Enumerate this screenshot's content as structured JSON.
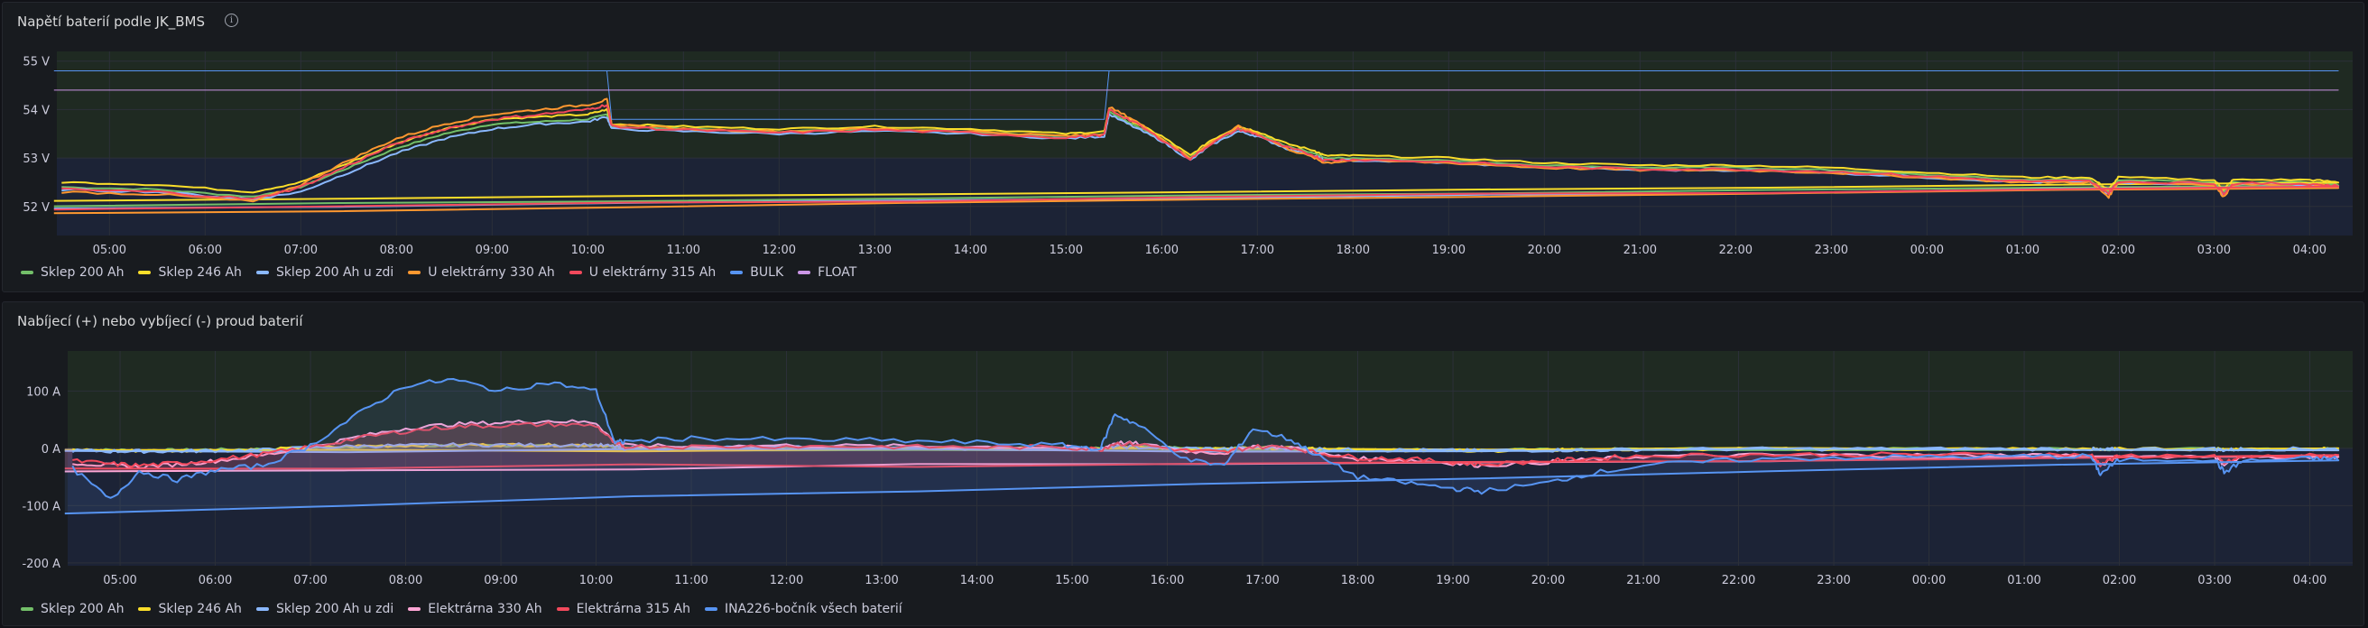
{
  "panels": [
    {
      "title": "Napětí baterií podle JK_BMS"
    },
    {
      "title": "Nabíjecí (+) nebo vybíjecí (-) proud baterií"
    }
  ],
  "colors": {
    "green": "#73bf69",
    "yellow": "#fade2a",
    "lightblue": "#8ab8ff",
    "orange": "#ff9830",
    "red": "#f2495c",
    "blue": "#5794f2",
    "purple": "#ca95e5",
    "pink": "#ffa6d5",
    "zone_high": "#1f2a22",
    "zone_low": "#1c2336"
  },
  "chart_data": [
    {
      "type": "line",
      "title": "Napětí baterií podle JK_BMS",
      "xlabel": "",
      "ylabel": "",
      "x_ticks": [
        "05:00",
        "06:00",
        "07:00",
        "08:00",
        "09:00",
        "10:00",
        "11:00",
        "12:00",
        "13:00",
        "14:00",
        "15:00",
        "16:00",
        "17:00",
        "18:00",
        "19:00",
        "20:00",
        "21:00",
        "22:00",
        "23:00",
        "00:00",
        "01:00",
        "02:00",
        "03:00",
        "04:00"
      ],
      "y_ticks": [
        "52 V",
        "53 V",
        "54 V",
        "55 V"
      ],
      "ylim": [
        51.4,
        55.2
      ],
      "grid": true,
      "legend_position": "bottom-left",
      "x_hours": [
        4.5,
        5.5,
        6.5,
        7,
        7.5,
        8,
        8.5,
        9,
        9.5,
        10,
        10.2,
        10.25,
        11,
        12,
        13,
        14,
        15,
        15.4,
        15.45,
        15.7,
        16,
        16.3,
        16.5,
        16.8,
        17,
        17.3,
        17.6,
        17.7,
        18,
        19,
        20,
        21,
        22,
        23,
        0,
        1,
        1.7,
        1.9,
        2,
        3,
        3.1,
        3.2,
        4,
        4.3,
        4.42
      ],
      "series": [
        {
          "name": "Sklep 200 Ah",
          "color_key": "green",
          "values": [
            52.4,
            52.35,
            52.2,
            52.4,
            52.8,
            53.2,
            53.5,
            53.7,
            53.75,
            53.8,
            53.9,
            53.65,
            53.6,
            53.55,
            53.6,
            53.55,
            53.45,
            53.5,
            53.95,
            53.7,
            53.4,
            53.0,
            53.3,
            53.6,
            53.5,
            53.25,
            53.1,
            53.0,
            53.0,
            52.95,
            52.85,
            52.8,
            52.8,
            52.75,
            52.65,
            52.55,
            52.55,
            52.3,
            52.55,
            52.5,
            52.3,
            52.5,
            52.5,
            52.45,
            52.0
          ]
        },
        {
          "name": "Sklep 246 Ah",
          "color_key": "yellow",
          "values": [
            52.5,
            52.45,
            52.3,
            52.5,
            52.9,
            53.3,
            53.6,
            53.8,
            53.85,
            53.9,
            54.0,
            53.7,
            53.65,
            53.6,
            53.65,
            53.6,
            53.5,
            53.55,
            54.0,
            53.75,
            53.45,
            53.05,
            53.35,
            53.65,
            53.55,
            53.3,
            53.15,
            53.05,
            53.05,
            53.0,
            52.9,
            52.85,
            52.85,
            52.8,
            52.7,
            52.6,
            52.6,
            52.35,
            52.6,
            52.55,
            52.35,
            52.55,
            52.55,
            52.5,
            52.1
          ]
        },
        {
          "name": "Sklep 200 Ah u zdi",
          "color_key": "lightblue",
          "values": [
            52.35,
            52.3,
            52.15,
            52.3,
            52.7,
            53.1,
            53.4,
            53.6,
            53.7,
            53.75,
            53.85,
            53.6,
            53.55,
            53.5,
            53.55,
            53.5,
            53.4,
            53.45,
            53.9,
            53.65,
            53.35,
            52.95,
            53.25,
            53.55,
            53.45,
            53.2,
            53.05,
            52.95,
            52.95,
            52.9,
            52.8,
            52.75,
            52.75,
            52.7,
            52.6,
            52.5,
            52.5,
            52.25,
            52.5,
            52.45,
            52.25,
            52.45,
            52.45,
            52.4,
            51.95
          ]
        },
        {
          "name": "U elektrárny 330 Ah",
          "color_key": "orange",
          "values": [
            52.3,
            52.25,
            52.1,
            52.45,
            52.95,
            53.4,
            53.7,
            53.9,
            54.0,
            54.1,
            54.2,
            53.7,
            53.6,
            53.55,
            53.6,
            53.55,
            53.45,
            53.5,
            54.05,
            53.8,
            53.4,
            53.0,
            53.3,
            53.65,
            53.5,
            53.2,
            53.0,
            52.9,
            52.95,
            52.9,
            52.8,
            52.75,
            52.75,
            52.7,
            52.6,
            52.5,
            52.5,
            52.2,
            52.5,
            52.45,
            52.2,
            52.45,
            52.45,
            52.4,
            51.85
          ]
        },
        {
          "name": "U elektrárny 315 Ah",
          "color_key": "red",
          "values": [
            52.35,
            52.3,
            52.15,
            52.4,
            52.85,
            53.3,
            53.6,
            53.8,
            53.9,
            54.0,
            54.1,
            53.65,
            53.58,
            53.52,
            53.58,
            53.52,
            53.42,
            53.48,
            54.0,
            53.75,
            53.38,
            52.98,
            53.28,
            53.6,
            53.48,
            53.22,
            53.05,
            52.95,
            52.97,
            52.92,
            52.82,
            52.77,
            52.77,
            52.72,
            52.62,
            52.52,
            52.52,
            52.27,
            52.52,
            52.47,
            52.27,
            52.47,
            52.47,
            52.42,
            51.95
          ]
        },
        {
          "name": "BULK",
          "color_key": "blue",
          "values": [
            54.8,
            54.8,
            54.8,
            54.8,
            54.8,
            54.8,
            54.8,
            54.8,
            54.8,
            54.8,
            54.8,
            53.8,
            53.8,
            53.8,
            53.8,
            53.8,
            53.8,
            53.8,
            54.8,
            54.8,
            54.8,
            54.8,
            54.8,
            54.8,
            54.8,
            54.8,
            54.8,
            54.8,
            54.8,
            54.8,
            54.8,
            54.8,
            54.8,
            54.8,
            54.8,
            54.8,
            54.8,
            54.8,
            54.8,
            54.8,
            54.8,
            54.8,
            54.8,
            54.8,
            54.8
          ]
        },
        {
          "name": "FLOAT",
          "color_key": "purple",
          "values": [
            54.4,
            54.4,
            54.4,
            54.4,
            54.4,
            54.4,
            54.4,
            54.4,
            54.4,
            54.4,
            54.4,
            54.4,
            54.4,
            54.4,
            54.4,
            54.4,
            54.4,
            54.4,
            54.4,
            54.4,
            54.4,
            54.4,
            54.4,
            54.4,
            54.4,
            54.4,
            54.4,
            54.4,
            54.4,
            54.4,
            54.4,
            54.4,
            54.4,
            54.4,
            54.4,
            54.4,
            54.4,
            54.4,
            54.4,
            54.4,
            54.4,
            54.4,
            54.4,
            54.4,
            54.4
          ]
        }
      ]
    },
    {
      "type": "area",
      "title": "Nabíjecí (+) nebo vybíjecí (-) proud baterií",
      "xlabel": "",
      "ylabel": "",
      "x_ticks": [
        "05:00",
        "06:00",
        "07:00",
        "08:00",
        "09:00",
        "10:00",
        "11:00",
        "12:00",
        "13:00",
        "14:00",
        "15:00",
        "16:00",
        "17:00",
        "18:00",
        "19:00",
        "20:00",
        "21:00",
        "22:00",
        "23:00",
        "00:00",
        "01:00",
        "02:00",
        "03:00",
        "04:00"
      ],
      "y_ticks": [
        "-200 A",
        "-100 A",
        "0 A",
        "100 A"
      ],
      "ylim": [
        -205,
        170
      ],
      "grid": true,
      "legend_position": "bottom-left",
      "x_hours": [
        4.5,
        4.9,
        5.2,
        5.6,
        6,
        6.5,
        7,
        7.5,
        8,
        8.5,
        9,
        9.5,
        10,
        10.2,
        10.3,
        11,
        12,
        13,
        14,
        14.9,
        15.3,
        15.45,
        15.7,
        16.2,
        16.6,
        16.9,
        17.3,
        17.6,
        18,
        18.5,
        19,
        19.3,
        20,
        20.4,
        21,
        22,
        23,
        0,
        1,
        1.7,
        1.8,
        2,
        3,
        3.1,
        3.3,
        4,
        4.3,
        4.42
      ],
      "series": [
        {
          "name": "Sklep 200 Ah",
          "color_key": "green",
          "values": [
            -2,
            -3,
            -3,
            -3,
            -2,
            -1,
            1,
            3,
            4,
            5,
            5,
            5,
            5,
            2,
            0,
            1,
            1,
            1,
            0,
            0,
            0,
            2,
            2,
            0,
            -1,
            1,
            0,
            -1,
            -2,
            -2,
            -3,
            -3,
            -2,
            -2,
            -1,
            -1,
            -1,
            -1,
            -1,
            -1,
            -2,
            -1,
            -1,
            -2,
            -1,
            -1,
            -1,
            -3
          ]
        },
        {
          "name": "Sklep 246 Ah",
          "color_key": "yellow",
          "values": [
            -3,
            -4,
            -4,
            -4,
            -3,
            -2,
            1,
            4,
            5,
            6,
            6,
            6,
            6,
            3,
            0,
            1,
            1,
            1,
            0,
            0,
            0,
            3,
            2,
            0,
            -1,
            1,
            0,
            -1,
            -2,
            -3,
            -4,
            -4,
            -3,
            -2,
            -2,
            -1,
            -1,
            -1,
            -1,
            -1,
            -2,
            -1,
            -1,
            -2,
            -1,
            -1,
            -1,
            -4
          ]
        },
        {
          "name": "Sklep 200 Ah u zdi",
          "color_key": "lightblue",
          "values": [
            -4,
            -5,
            -5,
            -5,
            -4,
            -3,
            1,
            4,
            5,
            6,
            6,
            6,
            6,
            3,
            0,
            1,
            1,
            1,
            0,
            0,
            0,
            3,
            2,
            0,
            -1,
            1,
            0,
            -1,
            -3,
            -3,
            -4,
            -4,
            -3,
            -3,
            -2,
            -1,
            -1,
            -1,
            -1,
            -1,
            -3,
            -1,
            -1,
            -3,
            -1,
            -1,
            -1,
            -5
          ]
        },
        {
          "name": "Elektrárna 330 Ah",
          "color_key": "pink",
          "values": [
            -25,
            -30,
            -32,
            -28,
            -22,
            -12,
            2,
            20,
            35,
            42,
            45,
            48,
            45,
            10,
            5,
            3,
            5,
            4,
            3,
            2,
            -2,
            10,
            8,
            -5,
            -8,
            4,
            2,
            -10,
            -18,
            -20,
            -26,
            -30,
            -24,
            -20,
            -14,
            -12,
            -12,
            -12,
            -12,
            -12,
            -30,
            -14,
            -14,
            -28,
            -16,
            -14,
            -14,
            -40
          ]
        },
        {
          "name": "Elektrárna 315 Ah",
          "color_key": "red",
          "values": [
            -22,
            -27,
            -30,
            -26,
            -20,
            -10,
            2,
            18,
            30,
            38,
            40,
            42,
            40,
            8,
            4,
            3,
            4,
            3,
            2,
            2,
            -2,
            9,
            7,
            -4,
            -7,
            3,
            2,
            -9,
            -16,
            -18,
            -24,
            -28,
            -22,
            -18,
            -13,
            -11,
            -11,
            -11,
            -11,
            -11,
            -28,
            -13,
            -13,
            -26,
            -15,
            -13,
            -13,
            -38
          ]
        },
        {
          "name": "INA226-bočník všech baterií",
          "color_key": "blue",
          "values": [
            -35,
            -90,
            -40,
            -55,
            -38,
            -30,
            5,
            60,
            110,
            120,
            100,
            115,
            100,
            10,
            12,
            18,
            15,
            14,
            10,
            5,
            0,
            60,
            40,
            -20,
            -30,
            35,
            15,
            -15,
            -50,
            -60,
            -70,
            -75,
            -60,
            -45,
            -30,
            -20,
            -16,
            -15,
            -14,
            -14,
            -45,
            -20,
            -18,
            -42,
            -22,
            -18,
            -18,
            -110
          ]
        }
      ]
    }
  ]
}
